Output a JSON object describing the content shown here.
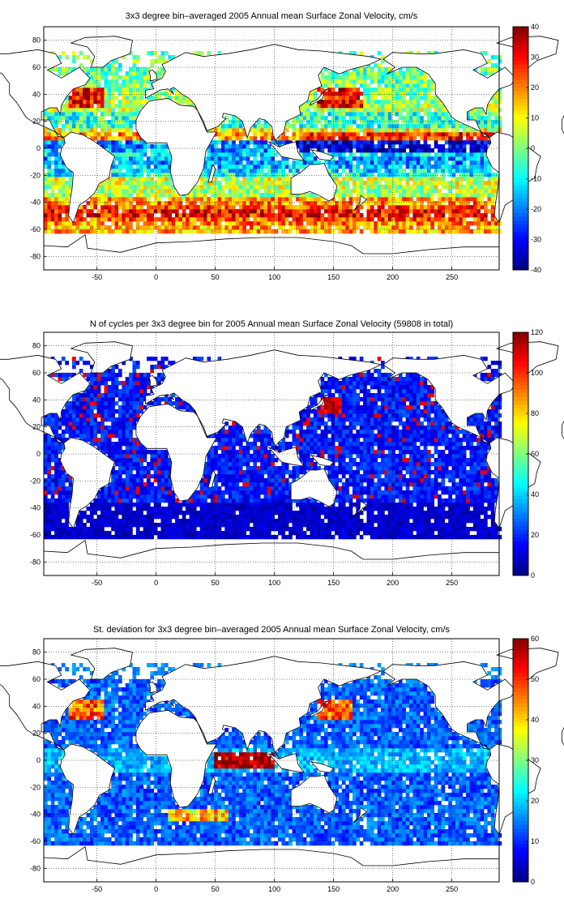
{
  "figure": {
    "panels": [
      {
        "title": "3x3 degree bin–averaged 2005 Annual mean Surface Zonal Velocity, cm/s",
        "colorbar": {
          "min": -40,
          "max": 40,
          "ticks": [
            40,
            30,
            20,
            10,
            0,
            -10,
            -20,
            -30,
            -40
          ]
        }
      },
      {
        "title": "N of cycles per 3x3 degree bin for 2005 Annual mean Surface Zonal Velocity (59808 in total)",
        "colorbar": {
          "min": 0,
          "max": 120,
          "ticks": [
            120,
            100,
            80,
            60,
            40,
            20,
            0
          ]
        }
      },
      {
        "title": "St. deviation for 3x3 degree bin–averaged 2005 Annual mean Surface Zonal Velocity, cm/s",
        "colorbar": {
          "min": 0,
          "max": 60,
          "ticks": [
            60,
            50,
            40,
            30,
            20,
            10,
            0
          ]
        }
      }
    ]
  },
  "chart_data": [
    {
      "type": "heatmap",
      "title": "3x3 degree bin–averaged 2005 Annual mean Surface Zonal Velocity, cm/s",
      "xlim": [
        -95,
        290
      ],
      "ylim": [
        -90,
        90
      ],
      "xticks": [
        -50,
        0,
        50,
        100,
        150,
        200,
        250
      ],
      "yticks": [
        80,
        60,
        40,
        20,
        0,
        -20,
        -40,
        -60,
        -80
      ],
      "bin_size_deg": 3,
      "grid": true,
      "colormap": "jet",
      "colorbar_range": [
        -40,
        40
      ],
      "colorbar_ticks": [
        40,
        30,
        20,
        10,
        0,
        -10,
        -20,
        -30,
        -40
      ],
      "pattern": "westward (negative) flow in equatorial band roughly 0 to -20 in Atlantic and Pacific, strong eastward (positive, 20-40) flow in Southern Ocean near -40 to -60 and along Gulf Stream/Kuroshio near 35-40N"
    },
    {
      "type": "heatmap",
      "title": "N of cycles per 3x3 degree bin for 2005 Annual mean Surface Zonal Velocity (59808 in total)",
      "xlim": [
        -95,
        290
      ],
      "ylim": [
        -90,
        90
      ],
      "xticks": [
        -50,
        0,
        50,
        100,
        150,
        200,
        250
      ],
      "yticks": [
        80,
        60,
        40,
        20,
        0,
        -20,
        -40,
        -60,
        -80
      ],
      "bin_size_deg": 3,
      "grid": true,
      "colormap": "jet",
      "colorbar_range": [
        0,
        120
      ],
      "colorbar_ticks": [
        120,
        100,
        80,
        60,
        40,
        20,
        0
      ],
      "total": 59808,
      "pattern": "mostly 0-30 cycles per bin, hotspots up to 100-120 near Japan (about 140E, 35N) and scattered in North Atlantic"
    },
    {
      "type": "heatmap",
      "title": "St. deviation for 3x3 degree bin–averaged 2005 Annual mean Surface Zonal Velocity, cm/s",
      "xlim": [
        -95,
        290
      ],
      "ylim": [
        -90,
        90
      ],
      "xticks": [
        -50,
        0,
        50,
        100,
        150,
        200,
        250
      ],
      "yticks": [
        80,
        60,
        40,
        20,
        0,
        -20,
        -40,
        -60,
        -80
      ],
      "bin_size_deg": 3,
      "grid": true,
      "colormap": "jet",
      "colorbar_range": [
        0,
        60
      ],
      "colorbar_ticks": [
        60,
        50,
        40,
        30,
        20,
        10,
        0
      ],
      "pattern": "low 5-15 over most of ocean, high 40-60 in equatorial Indian Ocean, Gulf Stream, Kuroshio and Agulhas"
    }
  ]
}
